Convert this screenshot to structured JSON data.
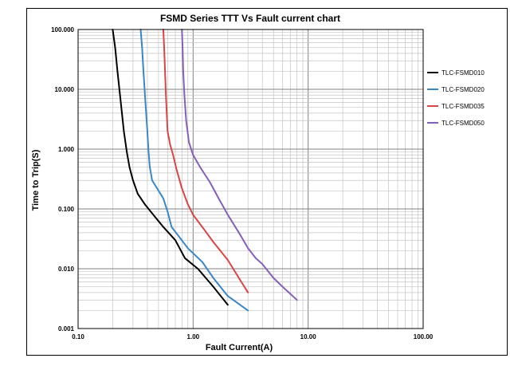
{
  "chart_data": {
    "type": "line",
    "title": "FSMD Series TTT Vs Fault current chart",
    "xlabel": "Fault Current(A)",
    "ylabel": "Time to Trip(S)",
    "x_scale": "log",
    "y_scale": "log",
    "xlim": [
      0.1,
      100
    ],
    "ylim": [
      0.001,
      100
    ],
    "x_ticks": [
      "0.10",
      "1.00",
      "10.00",
      "100.00"
    ],
    "y_ticks": [
      "100.000",
      "10.000",
      "1.000",
      "0.100",
      "0.010",
      "0.001"
    ],
    "grid": true,
    "legend_position": "right",
    "series": [
      {
        "name": "TLC-FSMD010",
        "color": "#000000",
        "x": [
          0.2,
          0.21,
          0.22,
          0.235,
          0.25,
          0.265,
          0.28,
          0.3,
          0.33,
          0.38,
          0.45,
          0.55,
          0.7,
          0.85,
          1.1,
          1.5,
          2.0
        ],
        "y": [
          100,
          50,
          20,
          6,
          2,
          0.9,
          0.5,
          0.3,
          0.18,
          0.12,
          0.08,
          0.05,
          0.03,
          0.015,
          0.01,
          0.005,
          0.0025
        ]
      },
      {
        "name": "TLC-FSMD020",
        "color": "#3a87c8",
        "x": [
          0.35,
          0.36,
          0.37,
          0.385,
          0.4,
          0.41,
          0.42,
          0.44,
          0.48,
          0.55,
          0.6,
          0.65,
          0.75,
          0.9,
          1.2,
          1.5,
          2.0,
          3.0
        ],
        "y": [
          100,
          50,
          20,
          6,
          2,
          0.9,
          0.5,
          0.3,
          0.23,
          0.15,
          0.09,
          0.05,
          0.035,
          0.022,
          0.013,
          0.007,
          0.0035,
          0.002
        ]
      },
      {
        "name": "TLC-FSMD035",
        "color": "#d94545",
        "x": [
          0.55,
          0.56,
          0.57,
          0.58,
          0.6,
          0.63,
          0.67,
          0.72,
          0.8,
          0.9,
          1.0,
          1.2,
          1.5,
          2.0,
          2.5,
          3.0
        ],
        "y": [
          100,
          50,
          20,
          8,
          2,
          1.2,
          0.8,
          0.45,
          0.22,
          0.12,
          0.08,
          0.05,
          0.028,
          0.014,
          0.007,
          0.004
        ]
      },
      {
        "name": "TLC-FSMD050",
        "color": "#8560b8",
        "x": [
          0.8,
          0.81,
          0.82,
          0.84,
          0.87,
          0.92,
          1.0,
          1.15,
          1.4,
          1.7,
          2.0,
          2.5,
          3.0,
          3.5,
          4.0,
          5.0,
          6.0,
          7.0,
          8.0
        ],
        "y": [
          100,
          50,
          20,
          8,
          3,
          1.3,
          0.8,
          0.5,
          0.28,
          0.14,
          0.08,
          0.04,
          0.022,
          0.015,
          0.012,
          0.007,
          0.005,
          0.0038,
          0.003
        ]
      }
    ]
  }
}
